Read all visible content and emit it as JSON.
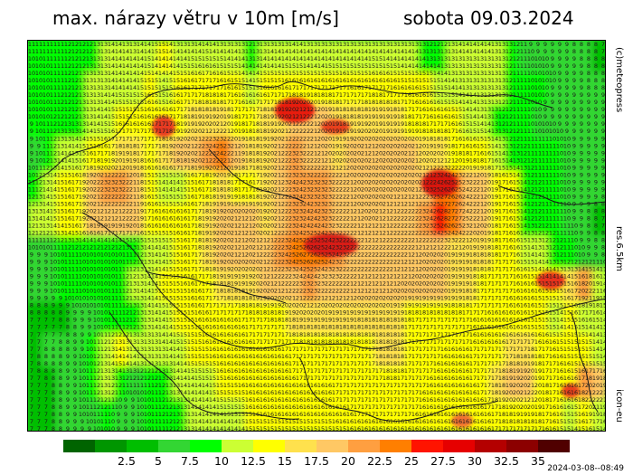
{
  "header": {
    "title": "max. nárazy větru v 10m [m/s]",
    "date": "sobota 09.03.2024"
  },
  "side_labels": {
    "copyright": "(c)meteopress",
    "resolution": "res.6.5km",
    "model": "icon-eu"
  },
  "timestamp": "2024-03-08--08:49",
  "legend": {
    "colors": [
      "#006400",
      "#009600",
      "#00be00",
      "#33d633",
      "#00ff00",
      "#ccff33",
      "#ffff00",
      "#ffe14d",
      "#ffc864",
      "#ff9f40",
      "#ff7f00",
      "#ff1400",
      "#e60000",
      "#b40000",
      "#8c0000",
      "#500000"
    ],
    "labels": [
      "2.5",
      "5",
      "7.5",
      "10",
      "12.5",
      "15",
      "17.5",
      "20",
      "22.5",
      "25",
      "27.5",
      "30",
      "32.5",
      "35"
    ]
  },
  "map": {
    "background_color": "#1fd01f",
    "unit": "m/s",
    "sample_values": [
      [
        11,
        11,
        11,
        12,
        12,
        13,
        14,
        13,
        14,
        15,
        13,
        13,
        14,
        13,
        13,
        12,
        13,
        13,
        14,
        13,
        13,
        13,
        13,
        13,
        13,
        13,
        13,
        12,
        12,
        14,
        14,
        14,
        13,
        12,
        9,
        9,
        9,
        8,
        8,
        7
      ],
      [
        10,
        10,
        11,
        12,
        13,
        13,
        14,
        14,
        15,
        14,
        15,
        16,
        17,
        16,
        15,
        14,
        15,
        15,
        15,
        15,
        15,
        16,
        15,
        16,
        16,
        15,
        15,
        15,
        14,
        13,
        13,
        13,
        13,
        11,
        10,
        10,
        9,
        9,
        8,
        8
      ],
      [
        10,
        10,
        12,
        12,
        13,
        14,
        15,
        15,
        16,
        16,
        17,
        18,
        18,
        19,
        17,
        17,
        18,
        19,
        21,
        22,
        20,
        18,
        18,
        19,
        19,
        18,
        17,
        16,
        16,
        15,
        14,
        13,
        12,
        11,
        10,
        9,
        9,
        9,
        9,
        9
      ],
      [
        8,
        10,
        13,
        14,
        15,
        16,
        18,
        18,
        17,
        18,
        20,
        21,
        23,
        25,
        21,
        18,
        19,
        21,
        23,
        21,
        20,
        19,
        20,
        21,
        20,
        20,
        21,
        19,
        19,
        17,
        16,
        15,
        13,
        12,
        11,
        11,
        10,
        9,
        9,
        9
      ],
      [
        10,
        13,
        15,
        16,
        20,
        23,
        23,
        21,
        15,
        14,
        14,
        15,
        17,
        18,
        17,
        16,
        19,
        22,
        24,
        23,
        23,
        22,
        20,
        20,
        20,
        20,
        20,
        22,
        26,
        25,
        22,
        20,
        17,
        15,
        12,
        11,
        10,
        9,
        9,
        9
      ],
      [
        13,
        14,
        15,
        17,
        20,
        21,
        21,
        22,
        17,
        16,
        16,
        17,
        19,
        20,
        21,
        21,
        19,
        21,
        23,
        24,
        23,
        22,
        21,
        20,
        21,
        22,
        22,
        24,
        28,
        27,
        22,
        20,
        17,
        15,
        12,
        11,
        11,
        9,
        8,
        7
      ],
      [
        9,
        9,
        10,
        11,
        10,
        10,
        10,
        11,
        13,
        14,
        15,
        17,
        18,
        20,
        21,
        20,
        22,
        23,
        25,
        27,
        25,
        23,
        22,
        22,
        22,
        22,
        21,
        20,
        20,
        19,
        18,
        18,
        17,
        16,
        14,
        13,
        12,
        10,
        9,
        8
      ],
      [
        9,
        9,
        10,
        11,
        10,
        10,
        11,
        13,
        14,
        15,
        15,
        16,
        17,
        18,
        18,
        19,
        20,
        21,
        22,
        23,
        22,
        22,
        21,
        21,
        21,
        20,
        20,
        20,
        20,
        19,
        18,
        17,
        17,
        16,
        16,
        15,
        15,
        18,
        24,
        13
      ],
      [
        7,
        7,
        7,
        8,
        9,
        10,
        11,
        12,
        13,
        14,
        15,
        15,
        16,
        16,
        16,
        17,
        17,
        17,
        18,
        18,
        18,
        18,
        18,
        18,
        18,
        18,
        17,
        17,
        17,
        17,
        16,
        16,
        16,
        16,
        15,
        15,
        14,
        15,
        14,
        13
      ],
      [
        7,
        8,
        8,
        9,
        10,
        13,
        15,
        14,
        13,
        13,
        14,
        15,
        15,
        16,
        16,
        16,
        16,
        16,
        17,
        17,
        17,
        17,
        17,
        17,
        18,
        18,
        17,
        17,
        16,
        16,
        17,
        17,
        17,
        18,
        19,
        17,
        16,
        15,
        15,
        14
      ],
      [
        7,
        7,
        8,
        9,
        11,
        13,
        10,
        9,
        10,
        12,
        13,
        14,
        14,
        15,
        15,
        16,
        16,
        16,
        16,
        16,
        16,
        17,
        17,
        17,
        17,
        17,
        17,
        16,
        16,
        16,
        16,
        17,
        19,
        21,
        22,
        17,
        16,
        16,
        24,
        21
      ],
      [
        7,
        7,
        8,
        9,
        9,
        10,
        9,
        9,
        10,
        11,
        12,
        13,
        14,
        14,
        14,
        15,
        15,
        15,
        15,
        15,
        15,
        15,
        16,
        16,
        16,
        16,
        16,
        16,
        16,
        16,
        16,
        16,
        17,
        17,
        17,
        16,
        15,
        14,
        15,
        13
      ]
    ]
  }
}
